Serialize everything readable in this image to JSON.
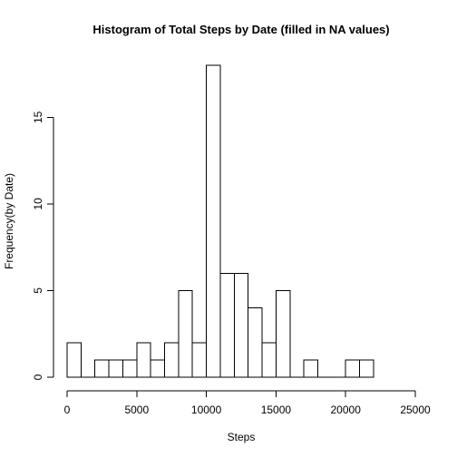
{
  "chart_data": {
    "type": "bar",
    "title": "Histogram of Total Steps by Date (filled in NA values)",
    "xlabel": "Steps",
    "ylabel": "Frequency(by Date)",
    "xlim": [
      0,
      25000
    ],
    "ylim": [
      0,
      18
    ],
    "bin_width": 1000,
    "bins": [
      {
        "start": 0,
        "end": 1000,
        "count": 2
      },
      {
        "start": 1000,
        "end": 2000,
        "count": 0
      },
      {
        "start": 2000,
        "end": 3000,
        "count": 1
      },
      {
        "start": 3000,
        "end": 4000,
        "count": 1
      },
      {
        "start": 4000,
        "end": 5000,
        "count": 1
      },
      {
        "start": 5000,
        "end": 6000,
        "count": 2
      },
      {
        "start": 6000,
        "end": 7000,
        "count": 1
      },
      {
        "start": 7000,
        "end": 8000,
        "count": 2
      },
      {
        "start": 8000,
        "end": 9000,
        "count": 5
      },
      {
        "start": 9000,
        "end": 10000,
        "count": 2
      },
      {
        "start": 10000,
        "end": 11000,
        "count": 18
      },
      {
        "start": 11000,
        "end": 12000,
        "count": 6
      },
      {
        "start": 12000,
        "end": 13000,
        "count": 6
      },
      {
        "start": 13000,
        "end": 14000,
        "count": 4
      },
      {
        "start": 14000,
        "end": 15000,
        "count": 2
      },
      {
        "start": 15000,
        "end": 16000,
        "count": 5
      },
      {
        "start": 16000,
        "end": 17000,
        "count": 0
      },
      {
        "start": 17000,
        "end": 18000,
        "count": 1
      },
      {
        "start": 18000,
        "end": 19000,
        "count": 0
      },
      {
        "start": 19000,
        "end": 20000,
        "count": 0
      },
      {
        "start": 20000,
        "end": 21000,
        "count": 1
      },
      {
        "start": 21000,
        "end": 22000,
        "count": 1
      }
    ],
    "x_ticks": [
      0,
      5000,
      10000,
      15000,
      20000,
      25000
    ],
    "y_ticks": [
      0,
      5,
      10,
      15
    ],
    "grid": false,
    "colors": {
      "bar_fill": "#ffffff",
      "bar_stroke": "#000000"
    }
  }
}
